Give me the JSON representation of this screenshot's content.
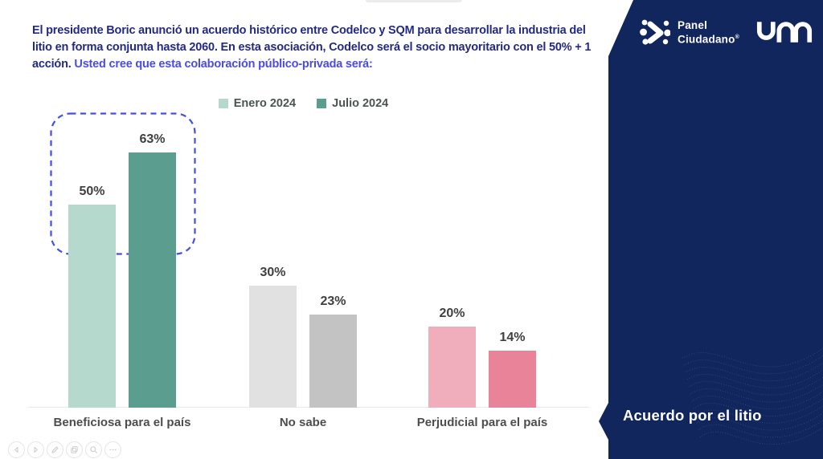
{
  "question": {
    "main": "El presidente Boric anunció un acuerdo histórico entre Codelco y SQM para desarrollar la industria del litio en forma conjunta hasta 2060. En esta asociación, Codelco será el socio mayoritario con el 50% + 1 acción.",
    "highlight": "Usted cree que esta colaboración público-privada será:"
  },
  "legend": {
    "items": [
      {
        "label": "Enero 2024",
        "color": "#b5d9cc"
      },
      {
        "label": "Julio 2024",
        "color": "#5b9d8e"
      }
    ]
  },
  "chart_data": {
    "type": "bar",
    "title": "",
    "xlabel": "",
    "ylabel": "",
    "ylim": [
      0,
      70
    ],
    "grid": false,
    "legend_position": "top-center",
    "categories": [
      "Beneficiosa para el país",
      "No sabe",
      "Perjudicial para el país"
    ],
    "series": [
      {
        "name": "Enero 2024",
        "values": [
          50,
          30,
          20
        ],
        "labels": [
          "50%",
          "30%",
          "20%"
        ],
        "colors": [
          "#b5d9cc",
          "#e1e1e1",
          "#f0aebc"
        ]
      },
      {
        "name": "Julio 2024",
        "values": [
          63,
          23,
          14
        ],
        "labels": [
          "63%",
          "23%",
          "14%"
        ],
        "colors": [
          "#5b9d8e",
          "#c3c3c3",
          "#e8839a"
        ]
      }
    ],
    "annotations": [
      {
        "type": "dashed-rounded-box",
        "target": "Beneficiosa para el país (both bars)",
        "color": "#4250e0"
      },
      {
        "type": "up-arrow-outline",
        "target": "Julio 2024 63% bar",
        "color": "#ffffff"
      }
    ]
  },
  "sidebar": {
    "background": "#12265e",
    "brand_primary": {
      "line1": "Panel",
      "line2": "Ciudadano",
      "registered": "®"
    },
    "brand_secondary": "UDD",
    "footer_title": "Acuerdo por el litio"
  },
  "viewer_toolbar": {
    "buttons": [
      {
        "name": "previous"
      },
      {
        "name": "next"
      },
      {
        "name": "draw"
      },
      {
        "name": "duplicate"
      },
      {
        "name": "zoom"
      },
      {
        "name": "more"
      }
    ]
  }
}
